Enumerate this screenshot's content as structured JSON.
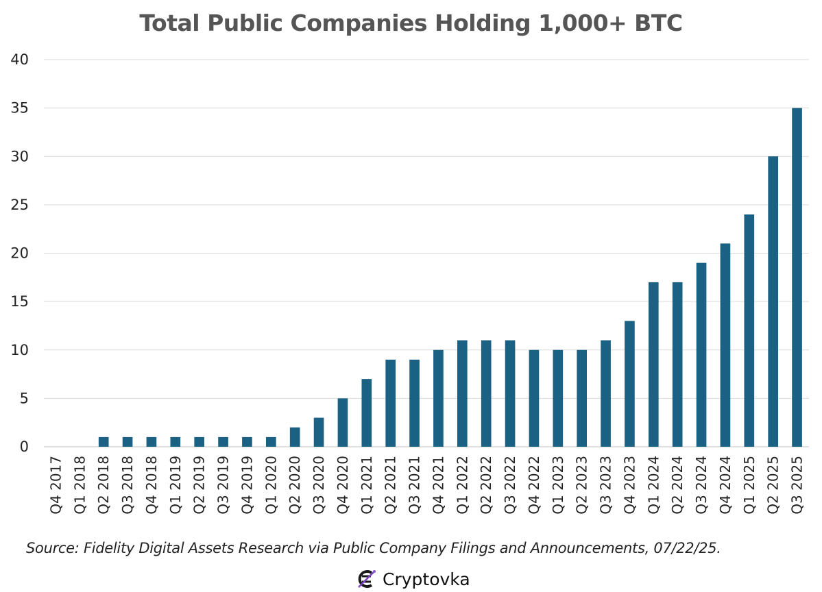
{
  "chart_data": {
    "type": "bar",
    "title": "Total Public Companies Holding 1,000+ BTC",
    "xlabel": "",
    "ylabel": "",
    "ylim": [
      0,
      40
    ],
    "yticks": [
      0,
      5,
      10,
      15,
      20,
      25,
      30,
      35,
      40
    ],
    "grid": true,
    "bar_color": "#1b6183",
    "categories": [
      "Q4 2017",
      "Q1 2018",
      "Q2 2018",
      "Q3 2018",
      "Q4 2018",
      "Q1 2019",
      "Q2 2019",
      "Q3 2019",
      "Q4 2019",
      "Q1 2020",
      "Q2 2020",
      "Q3 2020",
      "Q4 2020",
      "Q1 2021",
      "Q2 2021",
      "Q3 2021",
      "Q4 2021",
      "Q1 2022",
      "Q2 2022",
      "Q3 2022",
      "Q4 2022",
      "Q1 2023",
      "Q2 2023",
      "Q3 2023",
      "Q4 2023",
      "Q1 2024",
      "Q2 2024",
      "Q3 2024",
      "Q4 2024",
      "Q1 2025",
      "Q2 2025",
      "Q3 2025"
    ],
    "values": [
      0,
      0,
      1,
      1,
      1,
      1,
      1,
      1,
      1,
      1,
      2,
      3,
      5,
      7,
      9,
      9,
      10,
      11,
      11,
      11,
      10,
      10,
      10,
      11,
      13,
      17,
      17,
      19,
      21,
      24,
      30,
      35
    ]
  },
  "source_note": "Source: Fidelity Digital Assets Research via Public Company Filings and Announcements, 07/22/25.",
  "watermark": {
    "text": "Cryptovka",
    "icon": "cryptovka-logo-icon"
  }
}
